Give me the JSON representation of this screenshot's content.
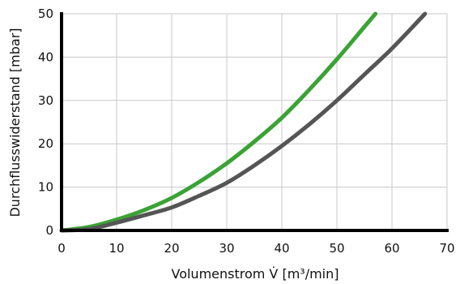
{
  "chart_data": {
    "type": "line",
    "title": "",
    "xlabel": "Volumenstrom V̇ [m³/min]",
    "ylabel": "Durchflusswiderstand [mbar]",
    "xlim": [
      0,
      70
    ],
    "ylim": [
      0,
      50
    ],
    "xticks": [
      0,
      10,
      20,
      30,
      40,
      50,
      60,
      70
    ],
    "yticks": [
      0,
      10,
      20,
      30,
      40,
      50
    ],
    "grid": true,
    "legend": "none",
    "series": [
      {
        "color": "#3aa335",
        "x": [
          0,
          5,
          10,
          15,
          20,
          25,
          30,
          35,
          40,
          45,
          50,
          55,
          57
        ],
        "y": [
          0,
          0.8,
          2.5,
          4.7,
          7.5,
          11.2,
          15.5,
          20.5,
          26,
          32.5,
          39.5,
          47,
          50
        ]
      },
      {
        "color": "#555555",
        "x": [
          0,
          5,
          10,
          15,
          20,
          25,
          30,
          35,
          40,
          45,
          50,
          55,
          60,
          66
        ],
        "y": [
          0,
          0.3,
          1.8,
          3.5,
          5.3,
          8,
          11,
          15,
          19.5,
          24.5,
          30,
          36,
          42,
          50
        ]
      }
    ]
  }
}
